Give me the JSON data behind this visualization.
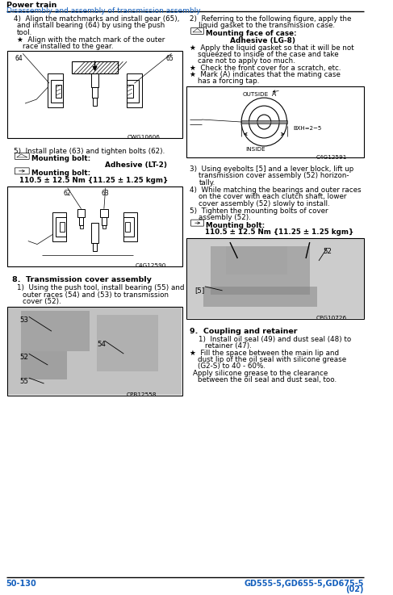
{
  "header_line1": "Power train",
  "header_line2": "Disassembly and assembly of transmission assembly",
  "header1_color": "#000000",
  "header2_color": "#1560BD",
  "footer_left": "50-130",
  "footer_right": "GD555-5,GD655-5,GD675-5",
  "footer_right2": "(02)",
  "footer_color": "#1560BD",
  "bg_color": "#ffffff",
  "text_color": "#000000",
  "fig1_code": "CWG10606",
  "fig2_code": "C4G12590",
  "fig3_code": "C4G12591",
  "fig4_code": "CPB12558",
  "fig5_code": "CPG10726"
}
